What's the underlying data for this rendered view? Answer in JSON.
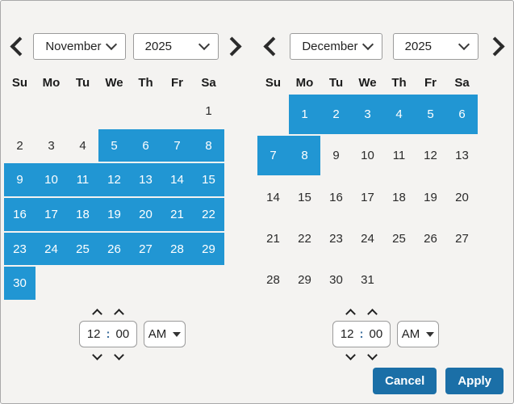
{
  "colors": {
    "highlight": "#2196d3",
    "button": "#1b6fa7",
    "background": "#f4f3f1",
    "border": "#a9a9a9",
    "control_border": "#9b9b9b",
    "colon_accent": "#3d6f9e",
    "selected_text": "#ffffff"
  },
  "calendars": [
    {
      "name": "start",
      "month": "November",
      "year": "2025",
      "weekdays": [
        "Su",
        "Mo",
        "Tu",
        "We",
        "Th",
        "Fr",
        "Sa"
      ],
      "weeks": [
        [
          null,
          null,
          null,
          null,
          null,
          null,
          {
            "d": "1",
            "sel": false
          }
        ],
        [
          {
            "d": "2",
            "sel": false
          },
          {
            "d": "3",
            "sel": false
          },
          {
            "d": "4",
            "sel": false
          },
          {
            "d": "5",
            "sel": true
          },
          {
            "d": "6",
            "sel": true
          },
          {
            "d": "7",
            "sel": true
          },
          {
            "d": "8",
            "sel": true
          }
        ],
        [
          {
            "d": "9",
            "sel": true
          },
          {
            "d": "10",
            "sel": true
          },
          {
            "d": "11",
            "sel": true
          },
          {
            "d": "12",
            "sel": true
          },
          {
            "d": "13",
            "sel": true
          },
          {
            "d": "14",
            "sel": true
          },
          {
            "d": "15",
            "sel": true
          }
        ],
        [
          {
            "d": "16",
            "sel": true
          },
          {
            "d": "17",
            "sel": true
          },
          {
            "d": "18",
            "sel": true
          },
          {
            "d": "19",
            "sel": true
          },
          {
            "d": "20",
            "sel": true
          },
          {
            "d": "21",
            "sel": true
          },
          {
            "d": "22",
            "sel": true
          }
        ],
        [
          {
            "d": "23",
            "sel": true
          },
          {
            "d": "24",
            "sel": true
          },
          {
            "d": "25",
            "sel": true
          },
          {
            "d": "26",
            "sel": true
          },
          {
            "d": "27",
            "sel": true
          },
          {
            "d": "28",
            "sel": true
          },
          {
            "d": "29",
            "sel": true
          }
        ],
        [
          {
            "d": "30",
            "sel": true
          },
          null,
          null,
          null,
          null,
          null,
          null
        ]
      ],
      "time": {
        "hour": "12",
        "colon": ":",
        "minute": "00",
        "meridiem": "AM"
      }
    },
    {
      "name": "end",
      "month": "December",
      "year": "2025",
      "weekdays": [
        "Su",
        "Mo",
        "Tu",
        "We",
        "Th",
        "Fr",
        "Sa"
      ],
      "weeks": [
        [
          null,
          {
            "d": "1",
            "sel": true
          },
          {
            "d": "2",
            "sel": true
          },
          {
            "d": "3",
            "sel": true
          },
          {
            "d": "4",
            "sel": true
          },
          {
            "d": "5",
            "sel": true
          },
          {
            "d": "6",
            "sel": true
          }
        ],
        [
          {
            "d": "7",
            "sel": true
          },
          {
            "d": "8",
            "sel": true
          },
          {
            "d": "9",
            "sel": false
          },
          {
            "d": "10",
            "sel": false
          },
          {
            "d": "11",
            "sel": false
          },
          {
            "d": "12",
            "sel": false
          },
          {
            "d": "13",
            "sel": false
          }
        ],
        [
          {
            "d": "14",
            "sel": false
          },
          {
            "d": "15",
            "sel": false
          },
          {
            "d": "16",
            "sel": false
          },
          {
            "d": "17",
            "sel": false
          },
          {
            "d": "18",
            "sel": false
          },
          {
            "d": "19",
            "sel": false
          },
          {
            "d": "20",
            "sel": false
          }
        ],
        [
          {
            "d": "21",
            "sel": false
          },
          {
            "d": "22",
            "sel": false
          },
          {
            "d": "23",
            "sel": false
          },
          {
            "d": "24",
            "sel": false
          },
          {
            "d": "25",
            "sel": false
          },
          {
            "d": "26",
            "sel": false
          },
          {
            "d": "27",
            "sel": false
          }
        ],
        [
          {
            "d": "28",
            "sel": false
          },
          {
            "d": "29",
            "sel": false
          },
          {
            "d": "30",
            "sel": false
          },
          {
            "d": "31",
            "sel": false
          },
          null,
          null,
          null
        ]
      ],
      "time": {
        "hour": "12",
        "colon": ":",
        "minute": "00",
        "meridiem": "AM"
      }
    }
  ],
  "footer": {
    "cancel": "Cancel",
    "apply": "Apply"
  }
}
